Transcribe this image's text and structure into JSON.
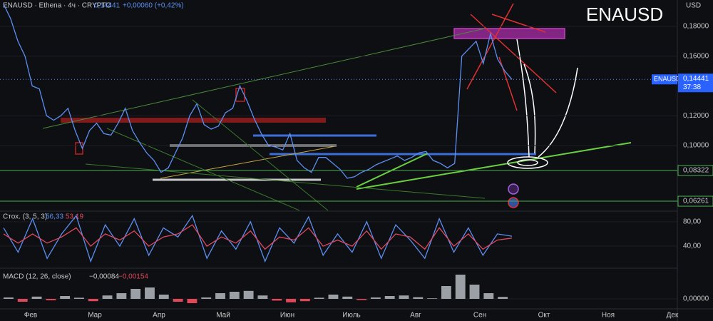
{
  "header": {
    "symbol": "ENAUSD · Ethena · 4ч · CRYPTO",
    "price": "0,14441",
    "change": "+0,00060 (+0,42%)",
    "currency": "USD"
  },
  "x_axis_labels": [
    "Фев",
    "Мар",
    "Апр",
    "Май",
    "Июн",
    "Июль",
    "Авг",
    "Сен",
    "Окт",
    "Ноя",
    "Дек"
  ],
  "chart_data": [
    {
      "type": "line",
      "title": "ENAUSD",
      "series": [
        {
          "name": "ENAUSD",
          "color": "#5b8ff0",
          "values": [
            0.195,
            0.185,
            0.17,
            0.16,
            0.14,
            0.138,
            0.12,
            0.117,
            0.12,
            0.125,
            0.11,
            0.098,
            0.11,
            0.115,
            0.108,
            0.107,
            0.115,
            0.125,
            0.11,
            0.102,
            0.095,
            0.09,
            0.082,
            0.085,
            0.095,
            0.105,
            0.12,
            0.128,
            0.114,
            0.111,
            0.113,
            0.122,
            0.125,
            0.14,
            0.13,
            0.118,
            0.108,
            0.1,
            0.099,
            0.097,
            0.108,
            0.09,
            0.085,
            0.082,
            0.092,
            0.092,
            0.088,
            0.084,
            0.078,
            0.079,
            0.082,
            0.084,
            0.087,
            0.089,
            0.091,
            0.093,
            0.09,
            0.092,
            0.095,
            0.096,
            0.09,
            0.088,
            0.085,
            0.088,
            0.16,
            0.165,
            0.17,
            0.155,
            0.175,
            0.158,
            0.15,
            0.1444
          ]
        }
      ],
      "ylim": [
        0.0564,
        0.1977
      ],
      "yticks": [
        {
          "value": 0.18,
          "label": "0,18000"
        },
        {
          "value": 0.16,
          "label": "0,16000"
        },
        {
          "value": 0.12,
          "label": "0,12000"
        },
        {
          "value": 0.1,
          "label": "0,10000"
        }
      ],
      "last_price": {
        "value": 0.14441,
        "label": "0,14441"
      },
      "countdown": "37:38",
      "horizontal_lines": [
        {
          "value": 0.08322,
          "label": "0,08322",
          "color": "#4caf50"
        },
        {
          "value": 0.06261,
          "label": "0,06261",
          "color": "#4caf50"
        }
      ]
    },
    {
      "type": "line",
      "title": "Стох. (3, 5, 3)",
      "legend_values": [
        "56,33",
        "53,19"
      ],
      "series": [
        {
          "color": "#5b8ff0",
          "values": [
            70,
            30,
            85,
            20,
            60,
            90,
            15,
            75,
            40,
            85,
            25,
            70,
            55,
            90,
            20,
            65,
            35,
            80,
            15,
            70,
            45,
            88,
            25,
            60,
            30,
            80,
            20,
            75,
            50,
            20,
            85,
            30,
            70,
            25,
            60,
            56.33
          ]
        },
        {
          "color": "#e0485a",
          "values": [
            60,
            45,
            60,
            45,
            55,
            70,
            40,
            60,
            50,
            65,
            40,
            55,
            60,
            75,
            40,
            55,
            45,
            65,
            35,
            55,
            50,
            70,
            40,
            50,
            40,
            65,
            35,
            60,
            55,
            35,
            70,
            40,
            60,
            35,
            50,
            53.19
          ]
        }
      ],
      "ylim": [
        5,
        95
      ],
      "yticks": [
        {
          "value": 80,
          "label": "80,00"
        },
        {
          "value": 40,
          "label": "40,00"
        }
      ]
    },
    {
      "type": "bar",
      "title": "MACD (12, 26, close)",
      "legend_values": [
        "−0,00084",
        "−0,00154"
      ],
      "color": "#9aa0a6",
      "values": [
        0.0005,
        -0.001,
        0.0008,
        -0.0005,
        0.001,
        0.0004,
        -0.0008,
        0.0012,
        0.002,
        0.0035,
        0.004,
        0.0015,
        -0.001,
        -0.0015,
        0.0005,
        0.002,
        0.0025,
        0.0028,
        0.0012,
        -0.0006,
        -0.0012,
        -0.0008,
        0.0004,
        0.0015,
        0.0008,
        -0.0004,
        0.0005,
        0.001,
        0.0012,
        0.0006,
        0.0002,
        0.0045,
        0.0085,
        0.005,
        0.002,
        0.0007
      ],
      "ylim": [
        -0.00325,
        0.01025
      ],
      "yticks": [
        {
          "value": 0,
          "label": "0,00000"
        }
      ]
    }
  ]
}
